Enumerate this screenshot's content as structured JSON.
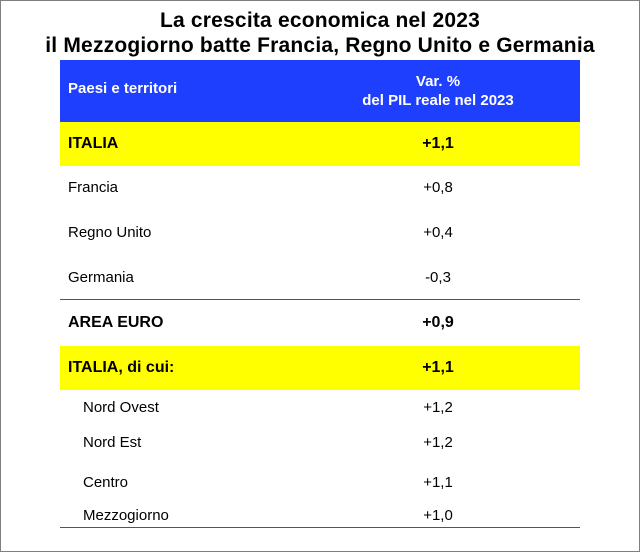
{
  "title_line1": "La crescita economica nel 2023",
  "title_line2": "il Mezzogiorno batte Francia, Regno Unito e Germania",
  "header": {
    "col1": "Paesi e territori",
    "col2_line1": "Var. %",
    "col2_line2": "del PIL reale nel 2023"
  },
  "rows": [
    {
      "label": "ITALIA",
      "value": "+1,1"
    },
    {
      "label": "Francia",
      "value": "+0,8"
    },
    {
      "label": "Regno Unito",
      "value": "+0,4"
    },
    {
      "label": "Germania",
      "value": "-0,3"
    },
    {
      "label": "AREA EURO",
      "value": "+0,9"
    },
    {
      "label": "ITALIA, di cui:",
      "value": "+1,1"
    },
    {
      "label": "Nord Ovest",
      "value": "+1,2"
    },
    {
      "label": "Nord Est",
      "value": "+1,2"
    },
    {
      "label": "Centro",
      "value": "+1,1"
    },
    {
      "label": "Mezzogiorno",
      "value": "+1,0"
    }
  ],
  "colors": {
    "header_bg": "#1f3fff",
    "highlight_bg": "#ffff00"
  }
}
